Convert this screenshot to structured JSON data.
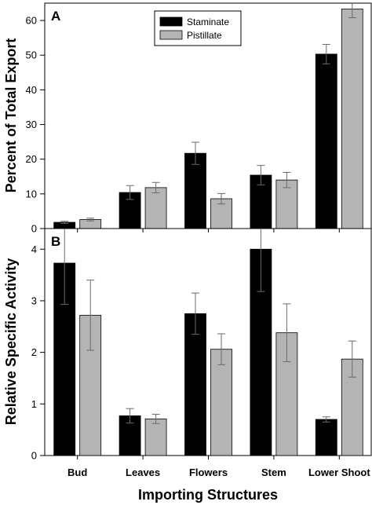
{
  "chart_data": [
    {
      "type": "bar",
      "panel": "A",
      "categories": [
        "Bud",
        "Leaves",
        "Flowers",
        "Stem",
        "Lower Shoot"
      ],
      "ylabel": "Percent of Total Export",
      "ylim": [
        0,
        65
      ],
      "yticks": [
        0,
        10,
        20,
        30,
        40,
        50,
        60
      ],
      "legend": {
        "placement": "top-center"
      },
      "series": [
        {
          "name": "Staminate",
          "color": "#000000",
          "values": [
            1.8,
            10.4,
            21.7,
            15.4,
            50.3
          ],
          "errors": [
            0.3,
            2.0,
            3.2,
            2.8,
            2.8
          ]
        },
        {
          "name": "Pistillate",
          "color": "#b4b4b4",
          "values": [
            2.6,
            11.8,
            8.6,
            14.0,
            63.3
          ],
          "errors": [
            0.4,
            1.5,
            1.5,
            2.2,
            2.5
          ]
        }
      ]
    },
    {
      "type": "bar",
      "panel": "B",
      "categories": [
        "Bud",
        "Leaves",
        "Flowers",
        "Stem",
        "Lower Shoot"
      ],
      "ylabel": "Relative Specific Activity",
      "ylim": [
        0,
        4.4
      ],
      "yticks": [
        0,
        1,
        2,
        3,
        4
      ],
      "series": [
        {
          "name": "Staminate",
          "color": "#000000",
          "values": [
            3.73,
            0.77,
            2.75,
            4.0,
            0.7
          ],
          "errors": [
            0.8,
            0.14,
            0.4,
            0.82,
            0.05
          ]
        },
        {
          "name": "Pistillate",
          "color": "#b4b4b4",
          "values": [
            2.72,
            0.71,
            2.06,
            2.38,
            1.87
          ],
          "errors": [
            0.68,
            0.09,
            0.3,
            0.56,
            0.35
          ]
        }
      ]
    }
  ],
  "xlabel": "Importing Structures"
}
